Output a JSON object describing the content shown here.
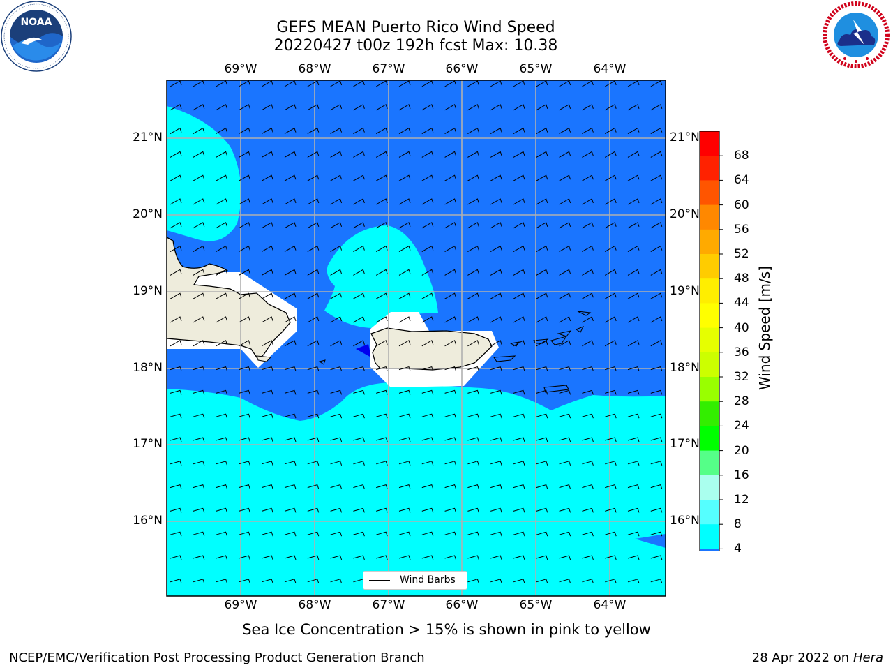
{
  "header": {
    "title_line1": "GEFS MEAN Puerto Rico Wind Speed",
    "title_line2": "20220427 t00z 192h fcst   Max: 10.38"
  },
  "logos": {
    "noaa": {
      "icon": "noaa-logo",
      "text": "NOAA",
      "ring_text": "NATIONAL OCEANIC AND ATMOSPHERIC ADMINISTRATION · U.S. DEPARTMENT OF COMMERCE"
    },
    "nws": {
      "icon": "nws-logo",
      "ring_text": "NATIONAL WEATHER SERVICE"
    }
  },
  "map": {
    "lon_labels": [
      "69°W",
      "68°W",
      "67°W",
      "66°W",
      "65°W",
      "64°W"
    ],
    "lat_labels": [
      "21°N",
      "20°N",
      "19°N",
      "18°N",
      "17°N",
      "16°N"
    ],
    "legend_label": "Wind Barbs",
    "colors": {
      "ocean_band_4_8": "#1a75ff",
      "ocean_band_8_12": "#00ffff",
      "land": "#eeecdc",
      "no_data": "#ffffff",
      "grid": "#b0b0b0"
    }
  },
  "colorbar": {
    "label": "Wind Speed [m/s]",
    "ticks": [
      "68",
      "64",
      "60",
      "56",
      "52",
      "48",
      "44",
      "40",
      "36",
      "32",
      "28",
      "24",
      "20",
      "16",
      "12",
      "8",
      "4"
    ],
    "colors": [
      "#ff0000",
      "#ff2200",
      "#ff5500",
      "#ff8800",
      "#ffaa00",
      "#ffcc00",
      "#ffee00",
      "#ffff00",
      "#e6ff00",
      "#ccff00",
      "#99ff00",
      "#33ee00",
      "#00ff00",
      "#55ff88",
      "#aaffee",
      "#55ffff",
      "#00ffff",
      "#1a75ff"
    ],
    "extend_color": "#0000ee"
  },
  "note": "Sea Ice Concentration > 15% is shown in pink to yellow",
  "footer": {
    "left": "NCEP/EMC/Verification Post Processing Product Generation Branch",
    "right_prefix": "28 Apr 2022 on ",
    "right_host": "Hera"
  }
}
